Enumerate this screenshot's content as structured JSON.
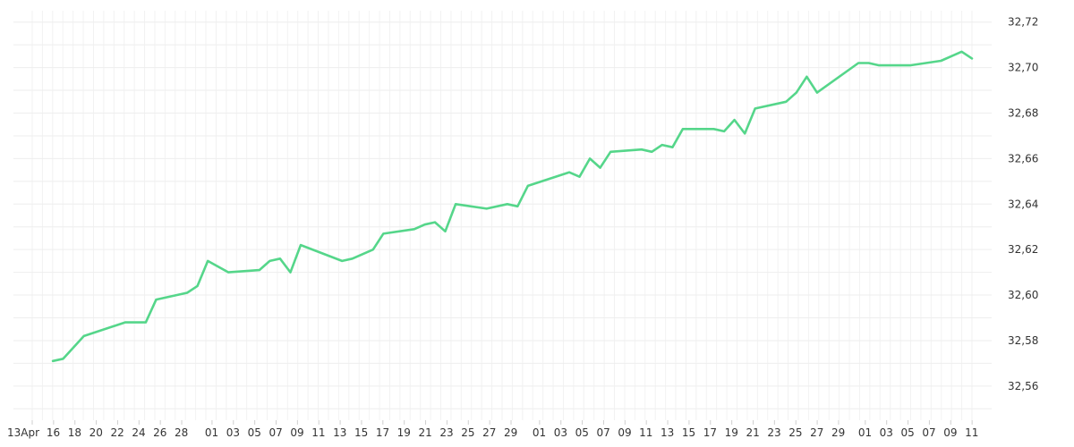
{
  "chart_data": {
    "type": "line",
    "title": "",
    "xlabel": "",
    "ylabel": "",
    "ylim": [
      32.545,
      32.725
    ],
    "y_ticks": [
      "32,56",
      "32,58",
      "32,60",
      "32,62",
      "32,64",
      "32,66",
      "32,68",
      "32,70",
      "32,72"
    ],
    "x_ticks": [
      "13Apr",
      "16",
      "18",
      "20",
      "22",
      "24",
      "26",
      "28",
      "01",
      "03",
      "05",
      "07",
      "09",
      "11",
      "13",
      "15",
      "17",
      "19",
      "21",
      "23",
      "25",
      "27",
      "29",
      "01",
      "03",
      "05",
      "07",
      "09",
      "11",
      "13",
      "15",
      "17",
      "19",
      "21",
      "23",
      "25",
      "27",
      "29",
      "01",
      "03",
      "05",
      "07",
      "09",
      "11"
    ],
    "grid": true,
    "legend": "none",
    "line_color": "#55d68a",
    "series": [
      {
        "x": [
          "2024-04-15",
          "2024-04-16",
          "2024-04-18",
          "2024-04-22",
          "2024-04-24",
          "2024-04-25",
          "2024-04-28",
          "2024-04-29",
          "2024-04-30",
          "2024-05-02",
          "2024-05-05",
          "2024-05-06",
          "2024-05-07",
          "2024-05-08",
          "2024-05-09",
          "2024-05-13",
          "2024-05-14",
          "2024-05-16",
          "2024-05-17",
          "2024-05-20",
          "2024-05-21",
          "2024-05-22",
          "2024-05-23",
          "2024-05-24",
          "2024-05-27",
          "2024-05-29",
          "2024-05-30",
          "2024-05-31",
          "2024-06-04",
          "2024-06-05",
          "2024-06-06",
          "2024-06-07",
          "2024-06-08",
          "2024-06-11",
          "2024-06-12",
          "2024-06-13",
          "2024-06-14",
          "2024-06-15",
          "2024-06-18",
          "2024-06-19",
          "2024-06-20",
          "2024-06-21",
          "2024-06-22",
          "2024-06-25",
          "2024-06-26",
          "2024-06-27",
          "2024-06-28",
          "2024-07-02",
          "2024-07-03",
          "2024-07-04",
          "2024-07-05",
          "2024-07-06",
          "2024-07-07",
          "2024-07-10",
          "2024-07-11",
          "2024-07-12",
          "2024-07-13"
        ],
        "values": [
          32.571,
          32.572,
          32.582,
          32.588,
          32.588,
          32.598,
          32.601,
          32.604,
          32.615,
          32.61,
          32.611,
          32.615,
          32.616,
          32.61,
          32.622,
          32.615,
          32.616,
          32.62,
          32.627,
          32.629,
          32.631,
          32.632,
          32.628,
          32.64,
          32.638,
          32.64,
          32.639,
          32.648,
          32.654,
          32.652,
          32.66,
          32.656,
          32.663,
          32.664,
          32.663,
          32.666,
          32.665,
          32.673,
          32.673,
          32.672,
          32.677,
          32.671,
          32.682,
          32.685,
          32.689,
          32.696,
          32.689,
          32.702,
          32.702,
          32.701,
          32.701,
          32.701,
          32.701,
          32.703,
          32.705,
          32.707,
          32.704
        ]
      }
    ]
  }
}
